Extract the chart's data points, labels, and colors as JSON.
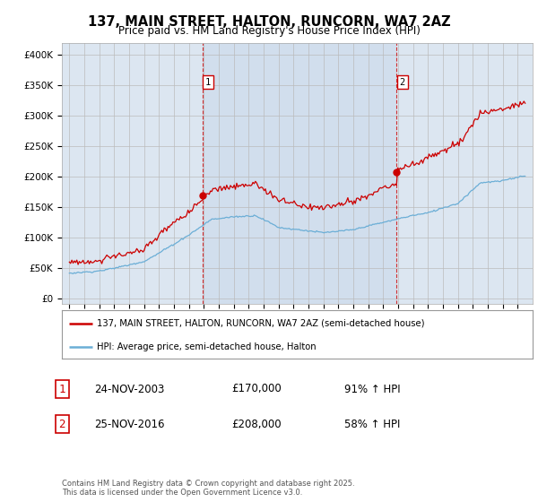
{
  "title": "137, MAIN STREET, HALTON, RUNCORN, WA7 2AZ",
  "subtitle": "Price paid vs. HM Land Registry's House Price Index (HPI)",
  "legend_line1": "137, MAIN STREET, HALTON, RUNCORN, WA7 2AZ (semi-detached house)",
  "legend_line2": "HPI: Average price, semi-detached house, Halton",
  "footer": "Contains HM Land Registry data © Crown copyright and database right 2025.\nThis data is licensed under the Open Government Licence v3.0.",
  "sale1_date": "24-NOV-2003",
  "sale1_price": "£170,000",
  "sale1_hpi": "91% ↑ HPI",
  "sale1_year": 2003.9,
  "sale1_price_val": 170000,
  "sale2_date": "25-NOV-2016",
  "sale2_price": "£208,000",
  "sale2_hpi": "58% ↑ HPI",
  "sale2_year": 2016.9,
  "sale2_price_val": 208000,
  "red_color": "#cc0000",
  "blue_color": "#6baed6",
  "bg_color": "#dce6f1",
  "bg_highlight": "#ccd9ea",
  "grid_color": "#bbbbbb",
  "ylim_max": 420000,
  "ylim_min": -8000,
  "xmin": 1994.5,
  "xmax": 2026.0
}
